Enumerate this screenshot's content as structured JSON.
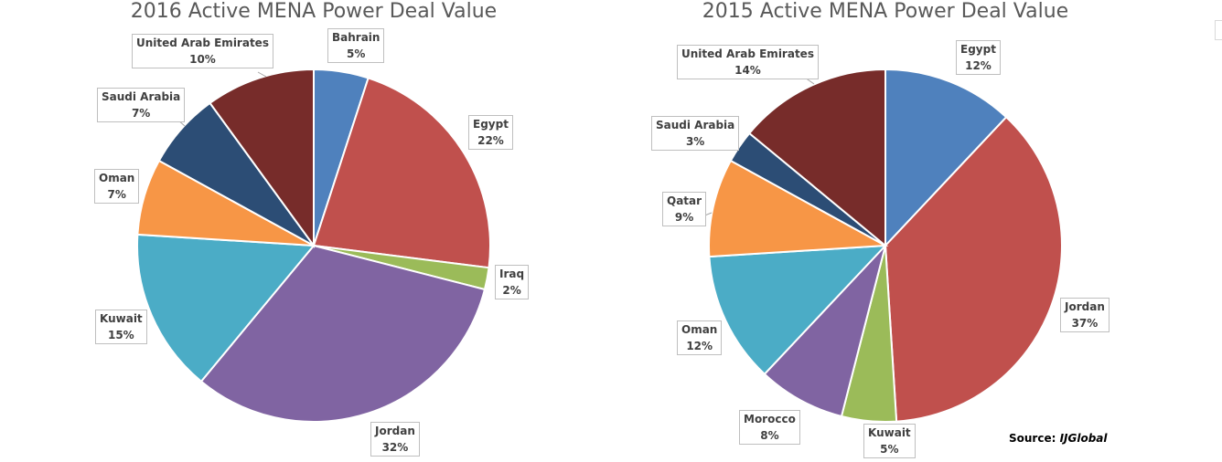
{
  "chart_data": [
    {
      "type": "pie",
      "title": "2016 Active MENA Power Deal Value",
      "slices": [
        {
          "label": "Bahrain",
          "value": 5,
          "display": "5%",
          "color": "#4F81BD"
        },
        {
          "label": "Egypt",
          "value": 22,
          "display": "22%",
          "color": "#C0504D"
        },
        {
          "label": "Iraq",
          "value": 2,
          "display": "2%",
          "color": "#9BBB59"
        },
        {
          "label": "Jordan",
          "value": 32,
          "display": "32%",
          "color": "#8064A2"
        },
        {
          "label": "Kuwait",
          "value": 15,
          "display": "15%",
          "color": "#4BACC6"
        },
        {
          "label": "Oman",
          "value": 7,
          "display": "7%",
          "color": "#F79646"
        },
        {
          "label": "Saudi Arabia",
          "value": 7,
          "display": "7%",
          "color": "#2C4D75"
        },
        {
          "label": "United Arab Emirates",
          "value": 10,
          "display": "10%",
          "color": "#772C2A"
        }
      ]
    },
    {
      "type": "pie",
      "title": "2015 Active MENA Power Deal Value",
      "slices": [
        {
          "label": "Egypt",
          "value": 12,
          "display": "12%",
          "color": "#4F81BD"
        },
        {
          "label": "Jordan",
          "value": 37,
          "display": "37%",
          "color": "#C0504D"
        },
        {
          "label": "Kuwait",
          "value": 5,
          "display": "5%",
          "color": "#9BBB59"
        },
        {
          "label": "Morocco",
          "value": 8,
          "display": "8%",
          "color": "#8064A2"
        },
        {
          "label": "Oman",
          "value": 12,
          "display": "12%",
          "color": "#4BACC6"
        },
        {
          "label": "Qatar",
          "value": 9,
          "display": "9%",
          "color": "#F79646"
        },
        {
          "label": "Saudi Arabia",
          "value": 3,
          "display": "3%",
          "color": "#2C4D75"
        },
        {
          "label": "United Arab Emirates",
          "value": 14,
          "display": "14%",
          "color": "#772C2A"
        }
      ]
    }
  ],
  "source": {
    "prefix": "Source: ",
    "name": "IJGlobal"
  }
}
